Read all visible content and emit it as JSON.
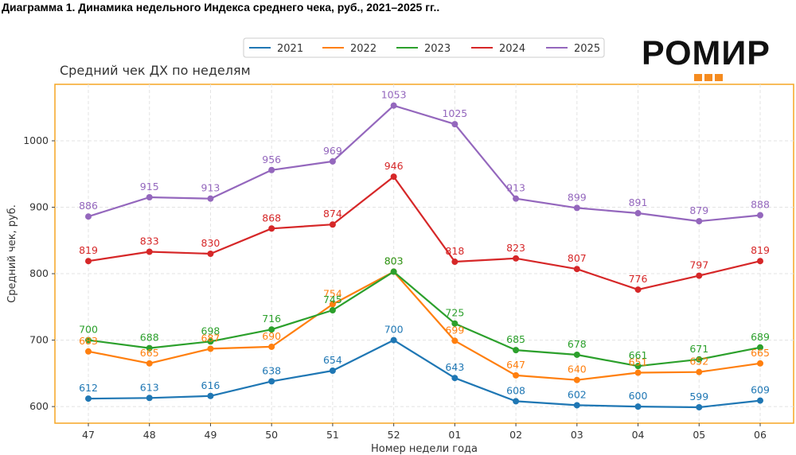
{
  "heading": "Диаграмма 1. Динамика недельного Индекса среднего чека, руб., 2021–2025 гг..",
  "logo": {
    "text": "РОМИР"
  },
  "chart_data": {
    "type": "line",
    "title": "Средний чек ДХ по неделям",
    "xlabel": "Номер недели года",
    "ylabel": "Средний чек, руб.",
    "categories": [
      "47",
      "48",
      "49",
      "50",
      "51",
      "52",
      "01",
      "02",
      "03",
      "04",
      "05",
      "06"
    ],
    "ylim": [
      575,
      1085
    ],
    "yticks": [
      600,
      700,
      800,
      900,
      1000
    ],
    "grid": true,
    "legend_position": "top",
    "series": [
      {
        "name": "2021",
        "color": "#1f77b4",
        "values": [
          612,
          613,
          616,
          638,
          654,
          700,
          643,
          608,
          602,
          600,
          599,
          609
        ]
      },
      {
        "name": "2022",
        "color": "#ff7f0e",
        "values": [
          683,
          665,
          687,
          690,
          754,
          803,
          699,
          647,
          640,
          651,
          652,
          665
        ]
      },
      {
        "name": "2023",
        "color": "#2ca02c",
        "values": [
          700,
          688,
          698,
          716,
          745,
          803,
          725,
          685,
          678,
          661,
          671,
          689
        ]
      },
      {
        "name": "2024",
        "color": "#d62728",
        "values": [
          819,
          833,
          830,
          868,
          874,
          946,
          818,
          823,
          807,
          776,
          797,
          819
        ]
      },
      {
        "name": "2025",
        "color": "#9467bd",
        "values": [
          886,
          915,
          913,
          956,
          969,
          1053,
          1025,
          913,
          899,
          891,
          879,
          888
        ]
      }
    ]
  }
}
